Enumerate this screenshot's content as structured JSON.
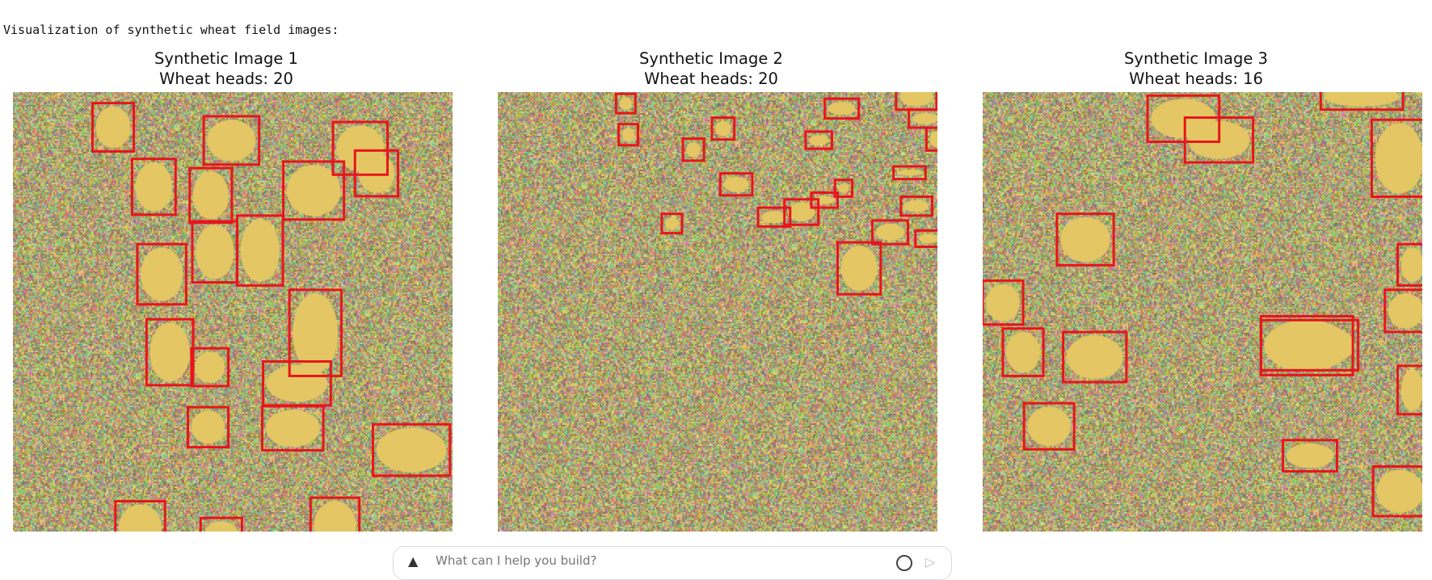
{
  "output_text": "Visualization of synthetic wheat field images:",
  "panels": [
    {
      "title": "Synthetic Image 1",
      "subtitle": "Wheat heads: 20",
      "boxes": [
        [
          0.181,
          0.025,
          0.275,
          0.135
        ],
        [
          0.434,
          0.055,
          0.56,
          0.165
        ],
        [
          0.728,
          0.068,
          0.852,
          0.188
        ],
        [
          0.778,
          0.133,
          0.876,
          0.237
        ],
        [
          0.271,
          0.152,
          0.37,
          0.279
        ],
        [
          0.402,
          0.173,
          0.498,
          0.297
        ],
        [
          0.615,
          0.158,
          0.753,
          0.29
        ],
        [
          0.408,
          0.294,
          0.51,
          0.433
        ],
        [
          0.51,
          0.281,
          0.614,
          0.44
        ],
        [
          0.283,
          0.346,
          0.394,
          0.483
        ],
        [
          0.629,
          0.45,
          0.747,
          0.646
        ],
        [
          0.304,
          0.517,
          0.41,
          0.667
        ],
        [
          0.406,
          0.583,
          0.49,
          0.669
        ],
        [
          0.569,
          0.613,
          0.723,
          0.713
        ],
        [
          0.398,
          0.717,
          0.49,
          0.808
        ],
        [
          0.567,
          0.715,
          0.706,
          0.815
        ],
        [
          0.819,
          0.756,
          0.994,
          0.873
        ],
        [
          0.233,
          0.931,
          0.346,
          1.05
        ],
        [
          0.427,
          0.969,
          0.521,
          1.05
        ],
        [
          0.677,
          0.923,
          0.788,
          1.05
        ]
      ]
    },
    {
      "title": "Synthetic Image 2",
      "subtitle": "Wheat heads: 20",
      "boxes": [
        [
          0.269,
          0.004,
          0.313,
          0.048
        ],
        [
          0.744,
          0.015,
          0.821,
          0.06
        ],
        [
          0.906,
          -0.02,
          0.998,
          0.04
        ],
        [
          0.935,
          0.04,
          1.01,
          0.081
        ],
        [
          0.975,
          0.081,
          1.02,
          0.133
        ],
        [
          0.275,
          0.073,
          0.319,
          0.121
        ],
        [
          0.487,
          0.058,
          0.538,
          0.108
        ],
        [
          0.421,
          0.106,
          0.469,
          0.156
        ],
        [
          0.7,
          0.09,
          0.76,
          0.129
        ],
        [
          0.9,
          0.169,
          0.973,
          0.198
        ],
        [
          0.506,
          0.185,
          0.579,
          0.235
        ],
        [
          0.767,
          0.2,
          0.806,
          0.238
        ],
        [
          0.713,
          0.229,
          0.773,
          0.263
        ],
        [
          0.652,
          0.244,
          0.729,
          0.302
        ],
        [
          0.592,
          0.263,
          0.665,
          0.306
        ],
        [
          0.917,
          0.238,
          0.988,
          0.281
        ],
        [
          0.373,
          0.277,
          0.419,
          0.321
        ],
        [
          0.852,
          0.292,
          0.933,
          0.346
        ],
        [
          0.95,
          0.315,
          1.01,
          0.352
        ],
        [
          0.773,
          0.342,
          0.871,
          0.46
        ]
      ]
    },
    {
      "title": "Synthetic Image 3",
      "subtitle": "Wheat heads: 16",
      "boxes": [
        [
          0.375,
          0.008,
          0.538,
          0.113
        ],
        [
          0.46,
          0.058,
          0.615,
          0.16
        ],
        [
          0.769,
          -0.02,
          0.956,
          0.04
        ],
        [
          0.885,
          0.063,
          1.01,
          0.238
        ],
        [
          0.169,
          0.277,
          0.298,
          0.394
        ],
        [
          0.0,
          0.429,
          0.092,
          0.529
        ],
        [
          0.944,
          0.346,
          1.01,
          0.44
        ],
        [
          0.915,
          0.45,
          1.01,
          0.546
        ],
        [
          0.046,
          0.538,
          0.138,
          0.646
        ],
        [
          0.183,
          0.546,
          0.327,
          0.66
        ],
        [
          0.633,
          0.51,
          0.842,
          0.644
        ],
        [
          0.633,
          0.519,
          0.854,
          0.633
        ],
        [
          0.944,
          0.623,
          1.01,
          0.733
        ],
        [
          0.094,
          0.708,
          0.208,
          0.813
        ],
        [
          0.683,
          0.792,
          0.806,
          0.863
        ],
        [
          0.888,
          0.852,
          1.01,
          0.965
        ]
      ]
    }
  ],
  "colors": {
    "box": "#e8151b",
    "head": "#e4c764"
  },
  "prompt": {
    "placeholder": "What can I help you build?"
  },
  "icons": {
    "spark": "spark-icon",
    "send": "send-icon"
  }
}
